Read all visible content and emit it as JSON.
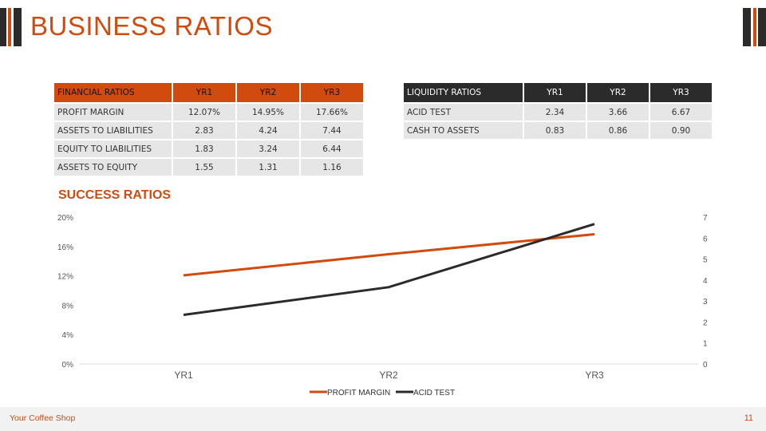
{
  "page": {
    "title": "BUSINESS RATIOS",
    "section_title": "SUCCESS RATIOS",
    "footer_brand": "Your Coffee Shop",
    "page_number": "11"
  },
  "colors": {
    "accent": "#d14a0e",
    "dark": "#2b2b2b",
    "cell": "#e6e6e6"
  },
  "financial_table": {
    "headers": [
      "FINANCIAL RATIOS",
      "YR1",
      "YR2",
      "YR3"
    ],
    "rows": [
      [
        "PROFIT MARGIN",
        "12.07%",
        "14.95%",
        "17.66%"
      ],
      [
        "ASSETS TO LIABILITIES",
        "2.83",
        "4.24",
        "7.44"
      ],
      [
        "EQUITY TO LIABILITIES",
        "1.83",
        "3.24",
        "6.44"
      ],
      [
        "ASSETS TO EQUITY",
        "1.55",
        "1.31",
        "1.16"
      ]
    ]
  },
  "liquidity_table": {
    "headers": [
      "LIQUIDITY RATIOS",
      "YR1",
      "YR2",
      "YR3"
    ],
    "rows": [
      [
        "ACID TEST",
        "2.34",
        "3.66",
        "6.67"
      ],
      [
        "CASH TO ASSETS",
        "0.83",
        "0.86",
        "0.90"
      ]
    ]
  },
  "chart_data": {
    "type": "line",
    "categories": [
      "YR1",
      "YR2",
      "YR3"
    ],
    "series": [
      {
        "name": "PROFIT MARGIN",
        "axis": "left",
        "color": "#d14a0e",
        "values": [
          12.07,
          14.95,
          17.66
        ]
      },
      {
        "name": "ACID TEST",
        "axis": "right",
        "color": "#2b2b2b",
        "values": [
          2.34,
          3.66,
          6.67
        ]
      }
    ],
    "y_left": {
      "min": 0,
      "max": 20,
      "ticks": [
        "0%",
        "4%",
        "8%",
        "12%",
        "16%",
        "20%"
      ]
    },
    "y_right": {
      "min": 0,
      "max": 7,
      "ticks": [
        "0",
        "1",
        "2",
        "3",
        "4",
        "5",
        "6",
        "7"
      ]
    },
    "grid": false,
    "legend_position": "bottom"
  }
}
